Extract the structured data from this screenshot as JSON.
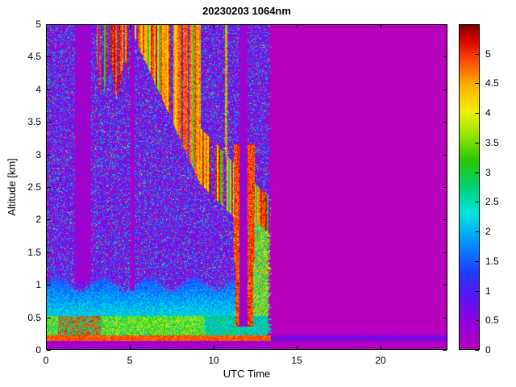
{
  "chart_data": {
    "type": "heatmap",
    "title": "20230203 1064nm",
    "xlabel": "UTC Time",
    "ylabel": "Altitude [km]",
    "xlim": [
      0,
      24
    ],
    "ylim": [
      0,
      5
    ],
    "xticks": [
      0,
      5,
      10,
      15,
      20
    ],
    "yticks": [
      0,
      0.5,
      1,
      1.5,
      2,
      2.5,
      3,
      3.5,
      4,
      4.5,
      5
    ],
    "grid": false,
    "colorbar": {
      "min": 0,
      "max": 5.5,
      "ticks": [
        0,
        0.5,
        1,
        1.5,
        2,
        2.5,
        3,
        3.5,
        4,
        4.5,
        5
      ],
      "colormap": [
        [
          0.0,
          "#b600be"
        ],
        [
          0.08,
          "#9600dc"
        ],
        [
          0.16,
          "#5a14f0"
        ],
        [
          0.24,
          "#1e3cff"
        ],
        [
          0.33,
          "#0096ff"
        ],
        [
          0.42,
          "#00e6dc"
        ],
        [
          0.5,
          "#00d278"
        ],
        [
          0.58,
          "#28c800"
        ],
        [
          0.66,
          "#96e600"
        ],
        [
          0.73,
          "#f0f000"
        ],
        [
          0.81,
          "#ffb400"
        ],
        [
          0.89,
          "#ff4600"
        ],
        [
          0.95,
          "#dc0000"
        ],
        [
          1.0,
          "#780000"
        ]
      ]
    },
    "features": {
      "background_value": 0,
      "data_end_utc": 13.45,
      "data_edge_ragged_utc": [
        13.22,
        13.5
      ],
      "ground_return_line": {
        "alt_km": [
          0.13,
          0.22
        ],
        "value_data": 5.1,
        "value_nodata": 0.65
      },
      "surface_aerosol_band": {
        "alt_top_km": 0.52,
        "value_min": 2.3,
        "value_max": 4.2,
        "red_blob_utc": [
          0.7,
          3.3
        ],
        "red_blob_value": 4.9,
        "dim_after_utc": 9.5
      },
      "mixed_layer": {
        "alt_top_km": 1.02,
        "value": 2.3
      },
      "gap_columns": [
        {
          "utc": [
            1.75,
            2.72
          ],
          "alt_min_km": 1.05
        },
        {
          "utc": [
            5.08,
            5.32
          ],
          "alt_min_km": 0.9
        },
        {
          "utc": [
            11.56,
            12.06
          ],
          "alt_min_km": 0.36
        }
      ],
      "dense_columns": [
        {
          "utc": [
            11.32,
            11.56
          ],
          "alt_km": [
            0.36,
            3.15
          ],
          "value": 4.9
        },
        {
          "utc": [
            12.06,
            12.4
          ],
          "alt_km": [
            0.36,
            3.15
          ],
          "value": 4.9
        }
      ],
      "dense_blob": {
        "utc": [
          11.25,
          12.5
        ],
        "alt_km": [
          1.35,
          3.15
        ],
        "value": 4.7
      },
      "edge_plume": {
        "utc": [
          12.4,
          13.45
        ],
        "alt_min_km": 0.45,
        "value_min": 2.0,
        "value_max": 4.8
      },
      "elevated_layer": {
        "fragmented_utc": [
          3.05,
          5.2
        ],
        "fragmented_base_km": 4.15,
        "descent_utc": [
          5.2,
          9.2
        ],
        "descent_base_km": [
          4.85,
          2.56
        ],
        "band_utc": [
          9.2,
          13.45
        ],
        "band_base_km": [
          2.56,
          1.45
        ],
        "band_thickness_km": 0.85,
        "value_min": 3.5,
        "value_max": 5.5
      }
    }
  }
}
